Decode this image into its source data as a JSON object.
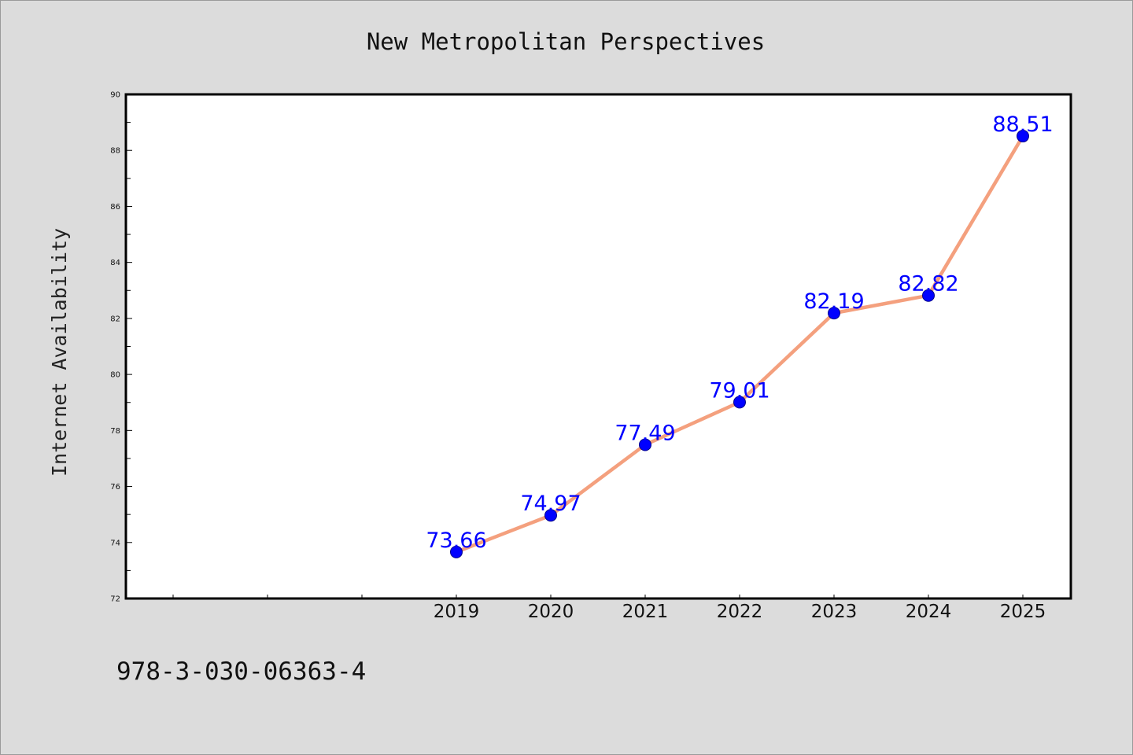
{
  "chart_data": {
    "type": "line",
    "title": "New Metropolitan Perspectives",
    "xlabel": "",
    "ylabel": "Internet Availability",
    "categories": [
      "2019",
      "2020",
      "2021",
      "2022",
      "2023",
      "2024",
      "2025"
    ],
    "values": [
      73.66,
      74.97,
      77.49,
      79.01,
      82.19,
      82.82,
      88.51
    ],
    "data_labels": [
      "73.66",
      "74.97",
      "77.49",
      "79.01",
      "82.19",
      "82.82",
      "88.51"
    ],
    "ylim": [
      72,
      90
    ],
    "yticks": [
      "72",
      "74",
      "76",
      "78",
      "80",
      "82",
      "84",
      "86",
      "88",
      "90"
    ],
    "grid": false,
    "legend": "none",
    "colors": {
      "line": "#f4a07e",
      "marker": "#0000ff",
      "label": "#0000ff",
      "background": "#dcdcdc",
      "plot_background": "#ffffff"
    }
  },
  "footer": {
    "isbn": "978-3-030-06363-4"
  }
}
